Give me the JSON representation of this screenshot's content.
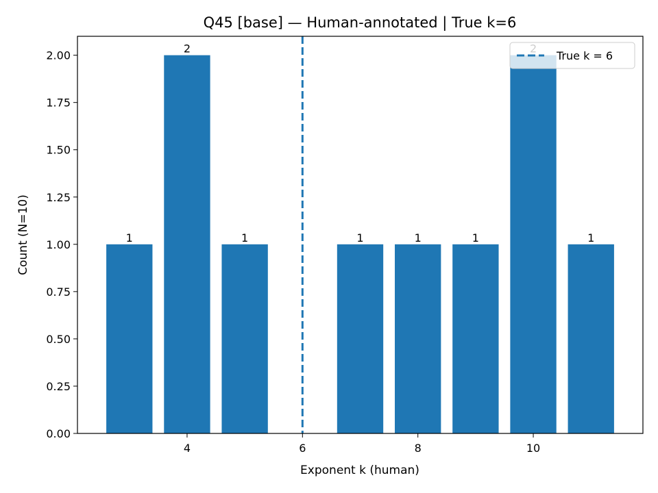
{
  "chart_data": {
    "type": "bar",
    "title": "Q45 [base] — Human-annotated | True k=6",
    "xlabel": "Exponent k (human)",
    "ylabel": "Count (N=10)",
    "x": [
      3,
      4,
      5,
      7,
      8,
      9,
      10,
      11
    ],
    "values": [
      1,
      2,
      1,
      1,
      1,
      1,
      2,
      1
    ],
    "data_labels": [
      "1",
      "2",
      "1",
      "1",
      "1",
      "1",
      "2",
      "1"
    ],
    "xlim": [
      2.1,
      11.9
    ],
    "ylim": [
      0,
      2.1
    ],
    "xticks": [
      4,
      6,
      8,
      10
    ],
    "xtick_labels": [
      "4",
      "6",
      "8",
      "10"
    ],
    "yticks": [
      0,
      0.25,
      0.5,
      0.75,
      1.0,
      1.25,
      1.5,
      1.75,
      2.0
    ],
    "ytick_labels": [
      "0.00",
      "0.25",
      "0.50",
      "0.75",
      "1.00",
      "1.25",
      "1.50",
      "1.75",
      "2.00"
    ],
    "bar_width": 0.8,
    "bar_color": "#1f77b4",
    "reference_line": {
      "x": 6,
      "style": "dashed",
      "color": "#1f77b4",
      "label": "True k = 6"
    },
    "legend": {
      "entries": [
        "True k = 6"
      ],
      "position": "top-right"
    },
    "grid": false
  }
}
